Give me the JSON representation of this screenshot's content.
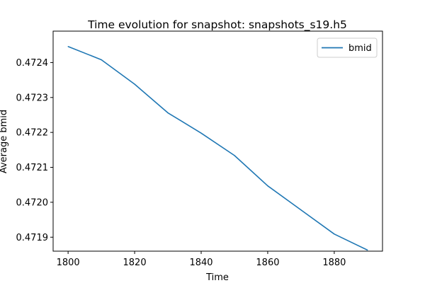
{
  "chart_data": {
    "type": "line",
    "title": "Time evolution for snapshot: snapshots_s19.h5",
    "xlabel": "Time",
    "ylabel": "Average bmid",
    "xlim": [
      1795.5,
      1894.5
    ],
    "ylim": [
      0.47186,
      0.47249
    ],
    "x_ticks": [
      1800,
      1820,
      1840,
      1860,
      1880
    ],
    "x_tick_labels": [
      "1800",
      "1820",
      "1840",
      "1860",
      "1880"
    ],
    "y_ticks": [
      0.4719,
      0.472,
      0.4721,
      0.4722,
      0.4723,
      0.4724
    ],
    "y_tick_labels": [
      "0.4719",
      "0.4720",
      "0.4721",
      "0.4722",
      "0.4723",
      "0.4724"
    ],
    "grid": false,
    "legend_position": "top-right",
    "series": [
      {
        "name": "bmid",
        "color": "#1f77b4",
        "x": [
          1800,
          1810,
          1820,
          1830,
          1840,
          1850,
          1860,
          1870,
          1880,
          1890
        ],
        "y": [
          0.472446,
          0.472408,
          0.472338,
          0.472256,
          0.472198,
          0.472134,
          0.472047,
          0.471978,
          0.471909,
          0.471863
        ]
      }
    ]
  }
}
